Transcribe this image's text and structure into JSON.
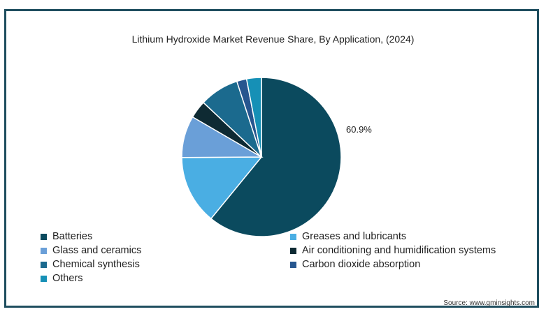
{
  "chart_data": {
    "type": "pie",
    "title": "Lithium Hydroxide Market Revenue Share, By Application, (2024)",
    "categories": [
      "Batteries",
      "Greases and lubricants",
      "Glass and ceramics",
      "Air conditioning and humidification systems",
      "Chemical synthesis",
      "Carbon dioxide absorption",
      "Others"
    ],
    "values": [
      60.9,
      14.0,
      8.5,
      3.6,
      8.0,
      2.0,
      3.0
    ],
    "colors": [
      "#0b4a5e",
      "#4aaee3",
      "#6a9fd8",
      "#0e2a33",
      "#1b6a8e",
      "#26568f",
      "#1690b6"
    ],
    "data_labels": [
      {
        "category": "Batteries",
        "text": "60.9%"
      }
    ],
    "legend_placement": "bottom"
  },
  "source_text": "Source: www.gminsights.com"
}
